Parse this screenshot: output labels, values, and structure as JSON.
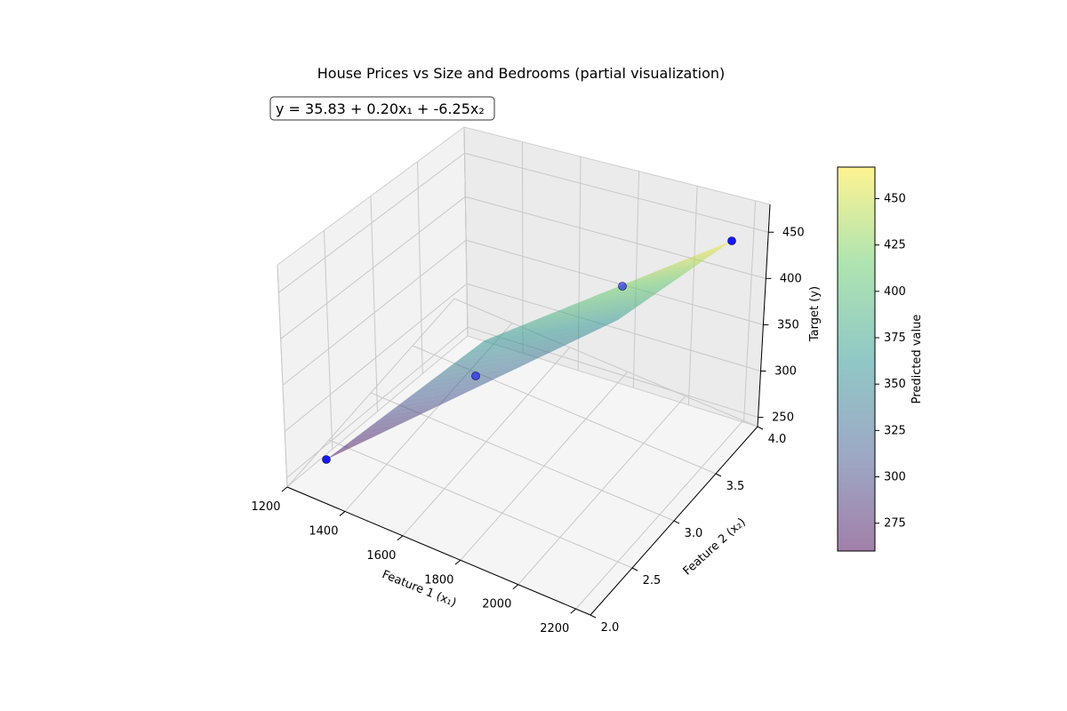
{
  "chart_data": {
    "type": "surface3d",
    "title": "House Prices vs Size and Bedrooms (partial visualization)",
    "equation": "y = 35.83 + 0.20x₁ + -6.25x₂",
    "xlabel": "Feature 1 (x₁)",
    "ylabel": "Feature 2 (x₂)",
    "zlabel": "Target (y)",
    "colorbar_label": "Predicted value",
    "xlim": [
      1200,
      2250
    ],
    "ylim": [
      2.0,
      4.0
    ],
    "zlim": [
      240,
      480
    ],
    "xticks": [
      "1200",
      "1400",
      "1600",
      "1800",
      "2000",
      "2200"
    ],
    "yticks": [
      "2.0",
      "2.5",
      "3.0",
      "3.5",
      "4.0"
    ],
    "zticks": [
      "250",
      "300",
      "350",
      "400",
      "450"
    ],
    "colorbar_range": [
      260,
      467
    ],
    "colorbar_ticks": [
      "275",
      "300",
      "325",
      "350",
      "375",
      "400",
      "425",
      "450"
    ],
    "points": [
      {
        "x": 1250,
        "y": 2.0,
        "z": 272
      },
      {
        "x": 1500,
        "y": 3.0,
        "z": 317
      },
      {
        "x": 1800,
        "y": 3.5,
        "z": 382
      },
      {
        "x": 2200,
        "y": 4.0,
        "z": 452
      }
    ],
    "colormap": [
      "#440154",
      "#3b528b",
      "#21918c",
      "#5ec962",
      "#fde725"
    ],
    "point_color": "#0000ff",
    "grid": true
  }
}
